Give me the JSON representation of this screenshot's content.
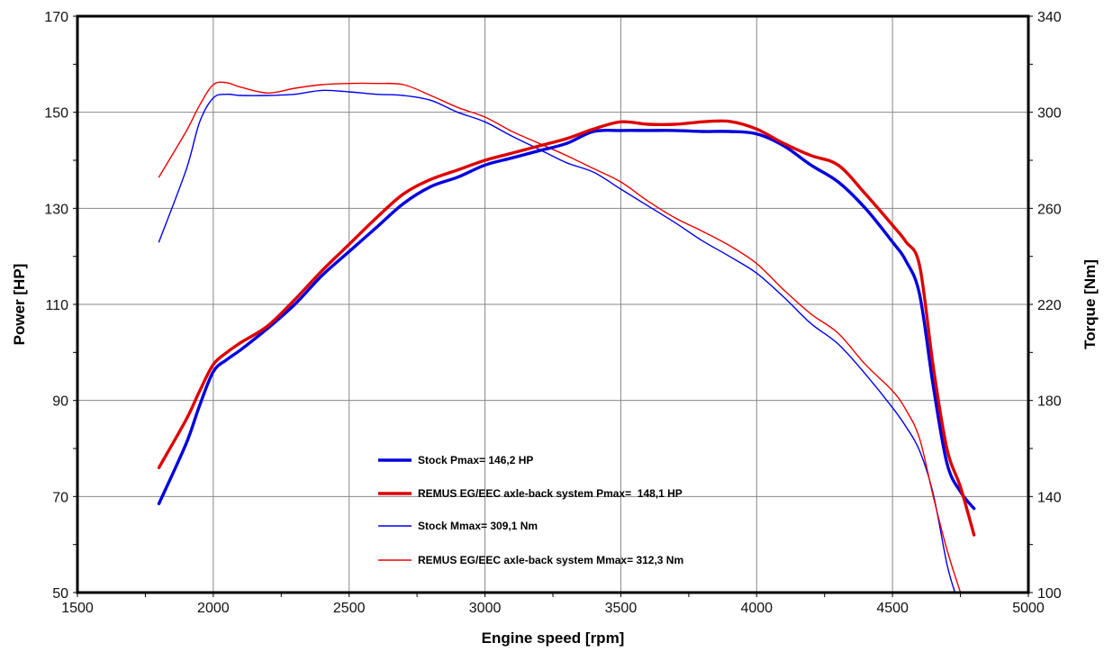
{
  "chart_data": {
    "type": "line",
    "xlabel": "Engine speed [rpm]",
    "ylabel": "Power [HP]",
    "y2label": "Torque [Nm]",
    "xlim": [
      1500,
      5000
    ],
    "ylim": [
      50,
      170
    ],
    "y2lim": [
      100,
      340
    ],
    "xticks": [
      "1500",
      "2000",
      "2500",
      "3000",
      "3500",
      "4000",
      "4500",
      "5000"
    ],
    "yticks": [
      "50",
      "70",
      "90",
      "110",
      "130",
      "150",
      "170"
    ],
    "y2ticks": [
      "100",
      "140",
      "180",
      "220",
      "260",
      "300",
      "340"
    ],
    "grid": true,
    "legend_position": "bottom-center",
    "series": [
      {
        "name": "Stock Pmax= 146,2 HP",
        "axis": "left",
        "color": "#0000dd",
        "style": "thick",
        "x": [
          1800,
          1900,
          1950,
          2000,
          2050,
          2100,
          2200,
          2300,
          2400,
          2500,
          2600,
          2700,
          2800,
          2900,
          3000,
          3100,
          3200,
          3300,
          3400,
          3500,
          3600,
          3700,
          3800,
          3900,
          4000,
          4100,
          4200,
          4300,
          4400,
          4500,
          4550,
          4600,
          4650,
          4700,
          4750,
          4800
        ],
        "y": [
          68.5,
          81,
          89,
          96,
          98.5,
          100.5,
          105,
          110,
          116,
          121,
          126,
          131,
          134.5,
          136.5,
          139,
          140.5,
          142,
          143.5,
          146,
          146.2,
          146.2,
          146.2,
          146,
          146,
          145.5,
          143,
          139,
          135.5,
          130,
          123,
          119,
          112,
          93,
          77,
          71,
          67.5
        ]
      },
      {
        "name": "REMUS EG/EEC axle-back system Pmax=  148,1 HP",
        "axis": "left",
        "color": "#dd0000",
        "style": "thick",
        "x": [
          1800,
          1900,
          1950,
          2000,
          2050,
          2100,
          2200,
          2300,
          2400,
          2500,
          2600,
          2700,
          2800,
          2900,
          3000,
          3100,
          3200,
          3300,
          3400,
          3500,
          3600,
          3700,
          3800,
          3900,
          4000,
          4100,
          4200,
          4300,
          4400,
          4500,
          4550,
          4600,
          4650,
          4700,
          4750,
          4800
        ],
        "y": [
          76,
          86,
          92,
          97.5,
          100,
          102,
          105.5,
          111,
          117,
          122.5,
          128,
          133,
          136,
          138,
          140,
          141.5,
          143,
          144.5,
          146.5,
          148,
          147.5,
          147.5,
          148,
          148.1,
          146.5,
          143.5,
          141,
          139,
          133,
          126.5,
          123,
          118,
          97,
          80,
          72,
          62
        ]
      },
      {
        "name": "Stock Mmax= 309,1 Nm",
        "axis": "right",
        "color": "#0000ee",
        "style": "thin",
        "x": [
          1800,
          1900,
          1950,
          2000,
          2050,
          2100,
          2200,
          2300,
          2400,
          2500,
          2600,
          2700,
          2800,
          2900,
          3000,
          3100,
          3200,
          3300,
          3400,
          3500,
          3600,
          3700,
          3800,
          3900,
          4000,
          4100,
          4200,
          4300,
          4400,
          4500,
          4550,
          4600,
          4650,
          4700,
          4730
        ],
        "y": [
          246,
          276,
          296,
          306,
          307.5,
          307,
          307,
          307.5,
          309.1,
          308.5,
          307.5,
          307,
          305,
          300,
          296,
          290,
          284.5,
          279,
          275,
          268,
          261,
          254,
          246.5,
          240,
          233,
          223,
          212,
          203.5,
          191,
          177,
          169,
          159,
          141,
          112,
          100
        ]
      },
      {
        "name": "REMUS EG/EEC axle-back system Mmax= 312,3 Nm",
        "axis": "right",
        "color": "#ee0000",
        "style": "thin",
        "x": [
          1800,
          1900,
          1950,
          2000,
          2050,
          2100,
          2200,
          2300,
          2400,
          2500,
          2600,
          2700,
          2800,
          2900,
          3000,
          3100,
          3200,
          3300,
          3400,
          3500,
          3600,
          3700,
          3800,
          3900,
          4000,
          4100,
          4200,
          4300,
          4400,
          4500,
          4550,
          4600,
          4650,
          4700,
          4750
        ],
        "y": [
          273,
          292,
          303,
          311.5,
          312.3,
          310.5,
          308,
          310,
          311.5,
          312,
          312,
          311.5,
          307,
          302,
          298,
          292,
          287,
          282,
          276.5,
          271,
          263,
          256,
          250.5,
          244.5,
          237,
          226,
          216,
          208,
          195,
          184,
          176,
          164,
          140,
          118,
          100
        ]
      }
    ]
  }
}
